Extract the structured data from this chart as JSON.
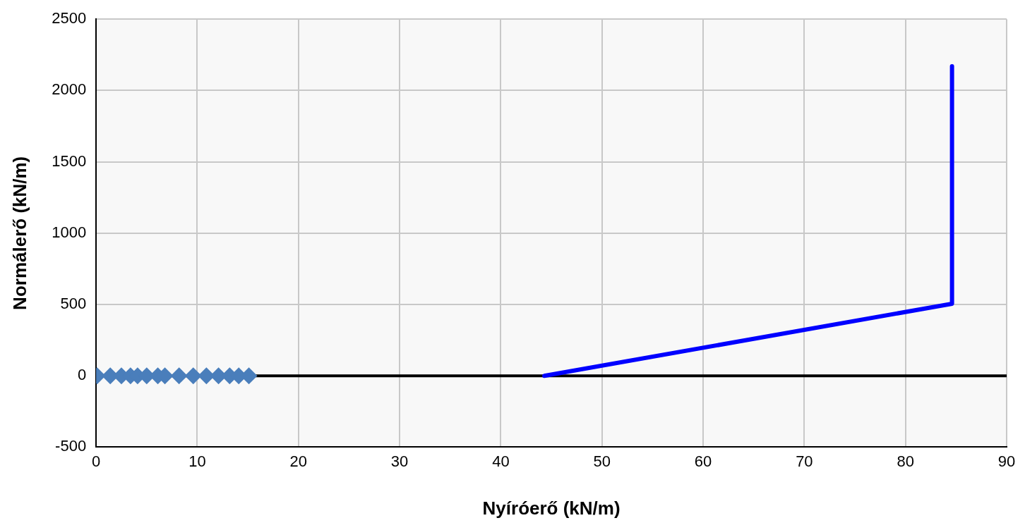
{
  "chart_data": {
    "type": "scatter",
    "xlabel": "Nyíróerő (kN/m)",
    "ylabel": "Normálerő (kN/m)",
    "xlim": [
      0,
      90
    ],
    "xticks": [
      0,
      10,
      20,
      30,
      40,
      50,
      60,
      70,
      80,
      90
    ],
    "ylim": [
      -500,
      2500
    ],
    "yticks": [
      -500,
      0,
      500,
      1000,
      1500,
      2000,
      2500
    ],
    "grid": true,
    "legend": false,
    "ref_lines": [
      {
        "axis": "y",
        "value": 0,
        "color": "#000000"
      }
    ],
    "series": [
      {
        "type": "line",
        "color": "#0000ff",
        "marker": "none",
        "x": [
          44.3,
          84.6,
          84.6
        ],
        "values": [
          0,
          505,
          2170
        ]
      },
      {
        "color": "#4a7ebb",
        "marker": "diamond",
        "x": [
          0.1,
          1.4,
          2.5,
          3.4,
          4.1,
          5.0,
          6.1,
          6.8,
          8.2,
          9.6,
          10.9,
          12.1,
          13.2,
          14.1,
          15.1
        ],
        "values": [
          0,
          0,
          0,
          0,
          0,
          0,
          0,
          0,
          0,
          0,
          0,
          0,
          0,
          0,
          0
        ]
      }
    ]
  }
}
